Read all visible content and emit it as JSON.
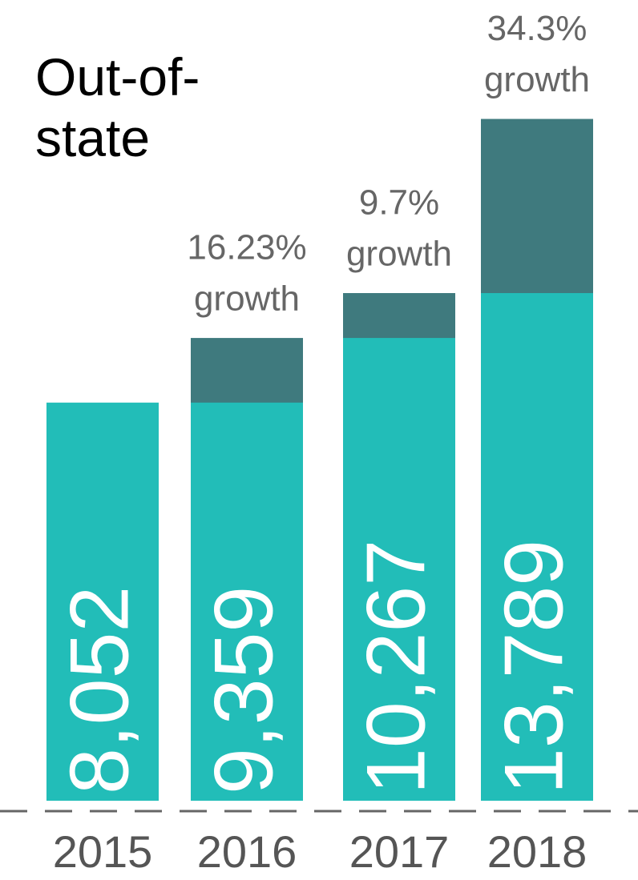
{
  "chart_data": {
    "type": "bar",
    "title": "Out-of-state",
    "categories": [
      "2015",
      "2016",
      "2017",
      "2018"
    ],
    "values": [
      8052,
      9359,
      10267,
      13789
    ],
    "value_labels": [
      "8,052",
      "9,359",
      "10,267",
      "13,789"
    ],
    "growth_labels": [
      null,
      [
        "16.23%",
        "growth"
      ],
      [
        "9.7%",
        "growth"
      ],
      [
        "34.3%",
        "growth"
      ]
    ],
    "color": "#22bdb8",
    "growth_color": "#3f7a7e",
    "ylim": [
      0,
      16000
    ]
  }
}
